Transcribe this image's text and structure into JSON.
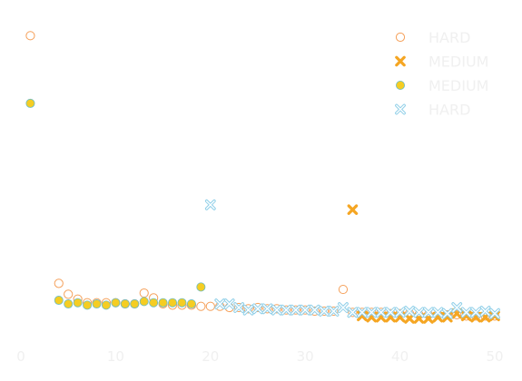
{
  "chart_data": {
    "type": "scatter",
    "title": "",
    "xlabel": "",
    "ylabel": "",
    "xlim": [
      0,
      50
    ],
    "ylim": [
      -0.08,
      1.2
    ],
    "x_ticks": [
      0,
      10,
      20,
      30,
      40,
      50
    ],
    "x_tick_labels": [
      "0",
      "10",
      "20",
      "30",
      "40",
      "50"
    ],
    "grid": false,
    "legend_position": "top-right",
    "series": [
      {
        "name": "HARD",
        "marker": "circle-open",
        "color": "#f5a05a",
        "points": [
          [
            1,
            1.15
          ],
          [
            4,
            0.125
          ],
          [
            5,
            0.08
          ],
          [
            6,
            0.06
          ],
          [
            7,
            0.045
          ],
          [
            8,
            0.045
          ],
          [
            9,
            0.045
          ],
          [
            10,
            0.045
          ],
          [
            11,
            0.04
          ],
          [
            12,
            0.04
          ],
          [
            13,
            0.085
          ],
          [
            14,
            0.065
          ],
          [
            15,
            0.04
          ],
          [
            16,
            0.035
          ],
          [
            17,
            0.035
          ],
          [
            18,
            0.035
          ],
          [
            19,
            0.03
          ],
          [
            20,
            0.03
          ],
          [
            21,
            0.03
          ],
          [
            22,
            0.025
          ],
          [
            23,
            0.025
          ],
          [
            24,
            0.02
          ],
          [
            25,
            0.025
          ],
          [
            26,
            0.02
          ],
          [
            27,
            0.02
          ],
          [
            28,
            0.015
          ],
          [
            29,
            0.015
          ],
          [
            30,
            0.015
          ],
          [
            31,
            0.01
          ],
          [
            32,
            0.01
          ],
          [
            33,
            0.01
          ],
          [
            34,
            0.1
          ],
          [
            35,
            0.005
          ],
          [
            36,
            0.005
          ],
          [
            37,
            0.005
          ],
          [
            38,
            0.005
          ],
          [
            39,
            0.0
          ],
          [
            40,
            0.0
          ],
          [
            41,
            0.0
          ],
          [
            42,
            -0.005
          ],
          [
            43,
            -0.005
          ],
          [
            44,
            -0.005
          ],
          [
            45,
            -0.005
          ],
          [
            46,
            -0.005
          ],
          [
            47,
            -0.01
          ],
          [
            48,
            -0.01
          ],
          [
            49,
            -0.01
          ],
          [
            50,
            -0.01
          ]
        ]
      },
      {
        "name": "MEDIUM",
        "marker": "x-filled",
        "color": "#f5a623",
        "points": [
          [
            35,
            0.43
          ],
          [
            36,
            -0.01
          ],
          [
            37,
            -0.015
          ],
          [
            38,
            -0.015
          ],
          [
            39,
            -0.015
          ],
          [
            40,
            -0.015
          ],
          [
            41,
            -0.02
          ],
          [
            42,
            -0.02
          ],
          [
            43,
            -0.02
          ],
          [
            44,
            -0.015
          ],
          [
            45,
            -0.015
          ],
          [
            46,
            0.0
          ],
          [
            47,
            -0.01
          ],
          [
            48,
            -0.015
          ],
          [
            49,
            -0.015
          ],
          [
            50,
            -0.01
          ]
        ]
      },
      {
        "name": "MEDIUM",
        "marker": "circle-filled",
        "color": "#f5cd23",
        "points": [
          [
            1,
            0.87
          ],
          [
            4,
            0.055
          ],
          [
            5,
            0.04
          ],
          [
            6,
            0.045
          ],
          [
            7,
            0.035
          ],
          [
            8,
            0.04
          ],
          [
            9,
            0.035
          ],
          [
            10,
            0.045
          ],
          [
            11,
            0.04
          ],
          [
            12,
            0.04
          ],
          [
            13,
            0.05
          ],
          [
            14,
            0.045
          ],
          [
            15,
            0.045
          ],
          [
            16,
            0.045
          ],
          [
            17,
            0.045
          ],
          [
            18,
            0.04
          ],
          [
            19,
            0.11
          ]
        ]
      },
      {
        "name": "HARD",
        "marker": "x-open",
        "color": "#8fcfe8",
        "points": [
          [
            20,
            0.45
          ],
          [
            21,
            0.04
          ],
          [
            22,
            0.04
          ],
          [
            23,
            0.025
          ],
          [
            24,
            0.015
          ],
          [
            25,
            0.02
          ],
          [
            26,
            0.02
          ],
          [
            27,
            0.015
          ],
          [
            28,
            0.015
          ],
          [
            29,
            0.015
          ],
          [
            30,
            0.015
          ],
          [
            31,
            0.015
          ],
          [
            32,
            0.01
          ],
          [
            33,
            0.01
          ],
          [
            34,
            0.025
          ],
          [
            35,
            0.005
          ],
          [
            36,
            0.005
          ],
          [
            37,
            0.005
          ],
          [
            38,
            0.005
          ],
          [
            39,
            0.005
          ],
          [
            40,
            0.005
          ],
          [
            41,
            0.01
          ],
          [
            42,
            0.005
          ],
          [
            43,
            0.005
          ],
          [
            44,
            0.005
          ],
          [
            45,
            0.0
          ],
          [
            46,
            0.025
          ],
          [
            47,
            0.005
          ],
          [
            48,
            0.005
          ],
          [
            49,
            0.01
          ],
          [
            50,
            0.0
          ]
        ]
      }
    ]
  }
}
